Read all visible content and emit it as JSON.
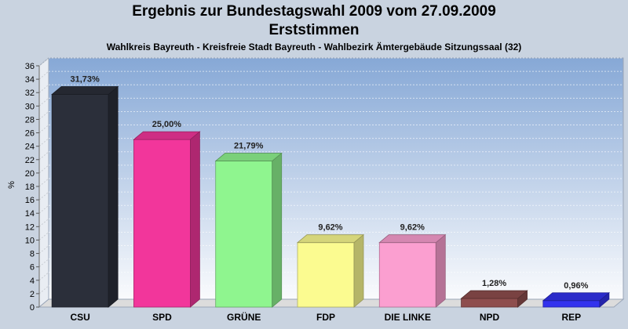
{
  "chart_data": {
    "type": "bar",
    "title": "Ergebnis zur Bundestagswahl 2009 vom 27.09.2009",
    "subtitle": "Erststimmen",
    "subsubtitle": "Wahlkreis Bayreuth - Kreisfreie Stadt Bayreuth - Wahlbezirk Ämtergebäude Sitzungssaal (32)",
    "ylabel": "%",
    "xlabel": "",
    "ylim": [
      0,
      36
    ],
    "yticks": [
      0,
      2,
      4,
      6,
      8,
      10,
      12,
      14,
      16,
      18,
      20,
      22,
      24,
      26,
      28,
      30,
      32,
      34,
      36
    ],
    "grid": true,
    "categories": [
      "CSU",
      "SPD",
      "GRÜNE",
      "FDP",
      "DIE LINKE",
      "NPD",
      "REP"
    ],
    "values": [
      31.73,
      25.0,
      21.79,
      9.62,
      9.62,
      1.28,
      0.96
    ],
    "value_labels": [
      "31,73%",
      "25,00%",
      "21,79%",
      "9,62%",
      "9,62%",
      "1,28%",
      "0,96%"
    ],
    "colors": [
      "#2b2f3a",
      "#f2369b",
      "#8ff58f",
      "#fbfb90",
      "#fb9fd0",
      "#8e4e4e",
      "#3232ee"
    ]
  }
}
